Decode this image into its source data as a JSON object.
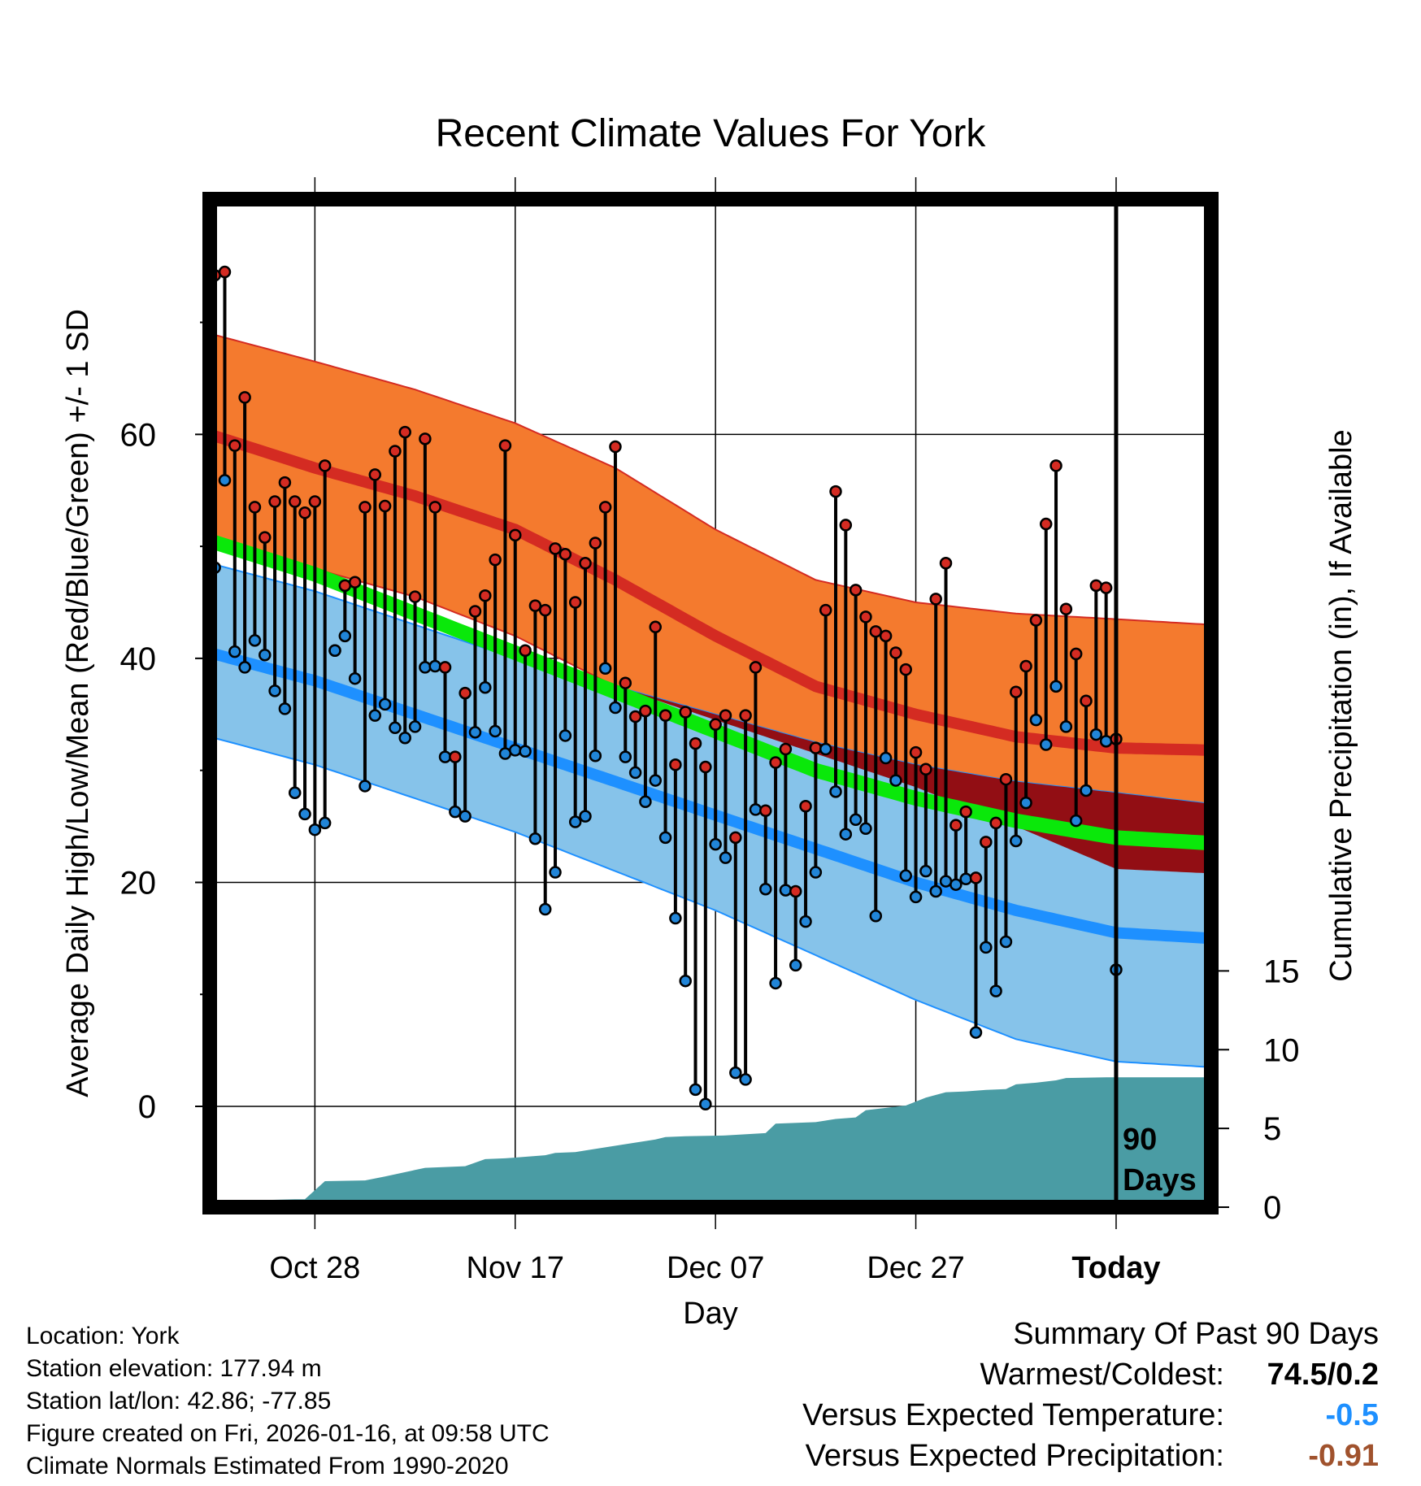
{
  "chart_data": {
    "type": "line",
    "title": "Recent Climate Values For York",
    "xlabel": "Day",
    "ylabel": "Average Daily High/Low/Mean (Red/Blue/Green) +/- 1 SD",
    "y2label": "Cumulative Precipitation (in), If Available",
    "xlim": [
      -10.5,
      89.5
    ],
    "ylim": [
      -9,
      81
    ],
    "y2lim": [
      0,
      64
    ],
    "yticks": [
      0,
      20,
      40,
      60
    ],
    "y2ticks": [
      0,
      5,
      10,
      15
    ],
    "xticks": [
      {
        "day": 0,
        "label": "Oct 28"
      },
      {
        "day": 20,
        "label": "Nov 17"
      },
      {
        "day": 40,
        "label": "Dec 07"
      },
      {
        "day": 60,
        "label": "Dec 27"
      },
      {
        "day": 80,
        "label": "Today"
      }
    ],
    "window_annotation": [
      "90",
      "Days"
    ],
    "normal_days": [
      -10.5,
      0,
      10,
      20,
      30,
      40,
      50,
      60,
      70,
      80,
      89.5
    ],
    "normals": {
      "high_upper": [
        69,
        66.5,
        64,
        61,
        57,
        51.5,
        47,
        45,
        44,
        43.5,
        43
      ],
      "high_mean": [
        60,
        57,
        54.5,
        51.5,
        47,
        42,
        37.5,
        35,
        33,
        32,
        31.8
      ],
      "high_lower": [
        51,
        48,
        45.5,
        42,
        37.5,
        34.5,
        31.5,
        28.5,
        25,
        21.2,
        20.8
      ],
      "mean": [
        50.5,
        47.5,
        44,
        40.5,
        37,
        33.5,
        30,
        27.5,
        25.5,
        24,
        23.5
      ],
      "low_upper": [
        48.5,
        46,
        43,
        40,
        37.5,
        35,
        32.5,
        30.5,
        29,
        28,
        27
      ],
      "low_mean": [
        40.5,
        38,
        35,
        32,
        29,
        26,
        23,
        20,
        17.5,
        15.5,
        15
      ],
      "low_lower": [
        33,
        30.5,
        27.5,
        24.5,
        21,
        17.5,
        13.5,
        9.5,
        6,
        4,
        3.5
      ]
    },
    "highs": [
      74.2,
      74.5,
      59,
      63.3,
      53.5,
      50.8,
      54,
      55.7,
      54,
      53,
      54,
      57.2,
      40.7,
      46.5,
      46.8,
      53.5,
      56.4,
      53.6,
      58.5,
      60.2,
      45.5,
      59.6,
      53.5,
      39.2,
      31.2,
      36.9,
      44.2,
      45.6,
      48.8,
      59,
      51,
      40.7,
      44.7,
      44.3,
      49.8,
      49.3,
      45,
      48.5,
      50.3,
      53.5,
      58.9,
      37.8,
      34.8,
      35.3,
      42.8,
      34.9,
      30.5,
      35.2,
      32.4,
      30.3,
      34.1,
      34.9,
      24,
      34.9,
      39.2,
      26.4,
      30.7,
      31.9,
      19.2,
      26.8,
      32,
      44.3,
      54.9,
      51.9,
      46.1,
      43.7,
      42.4,
      42,
      40.5,
      39,
      31.6,
      30.1,
      45.3,
      48.5,
      25.1,
      26.3,
      20.4,
      23.6,
      25.3,
      29.2,
      37,
      39.3,
      43.4,
      52,
      57.2,
      44.4,
      40.4,
      36.2,
      46.5,
      46.3,
      32.8
    ],
    "lows": [
      48.1,
      55.9,
      40.6,
      39.2,
      41.6,
      40.3,
      37.1,
      35.5,
      28,
      26.1,
      24.7,
      25.3,
      40.7,
      42,
      38.2,
      28.6,
      34.9,
      35.9,
      33.8,
      32.9,
      33.9,
      39.2,
      39.3,
      31.2,
      26.3,
      25.9,
      33.4,
      37.4,
      33.5,
      31.5,
      31.8,
      31.7,
      23.9,
      17.6,
      20.9,
      33.1,
      25.4,
      25.9,
      31.3,
      39.1,
      35.6,
      31.2,
      29.8,
      27.2,
      29.1,
      24,
      16.8,
      11.2,
      1.5,
      0.2,
      23.4,
      22.2,
      3,
      2.4,
      26.5,
      19.4,
      11,
      19.3,
      12.6,
      16.5,
      20.9,
      31.9,
      28.1,
      24.3,
      25.6,
      24.8,
      17,
      31.1,
      29.1,
      20.6,
      18.7,
      21,
      19.2,
      20.1,
      19.8,
      20.3,
      6.6,
      14.2,
      10.3,
      14.7,
      23.7,
      27.1,
      34.5,
      32.3,
      37.5,
      33.9,
      25.5,
      28.2,
      33.2,
      32.6,
      12.2
    ],
    "precip_days": [
      -10.5,
      -9,
      -7.5,
      -5,
      -2,
      -1,
      1,
      5,
      7,
      11,
      15,
      17,
      19,
      20,
      23,
      24,
      26,
      27,
      29,
      31,
      34,
      35,
      37,
      41,
      45,
      46,
      50,
      52,
      54,
      55,
      57,
      59,
      61,
      63,
      65,
      67,
      69,
      70,
      72,
      74,
      75,
      79,
      80,
      89.5
    ],
    "precip_cum": [
      0,
      0.25,
      0.3,
      0.45,
      0.5,
      0.5,
      1.65,
      1.7,
      1.95,
      2.5,
      2.6,
      3.05,
      3.1,
      3.15,
      3.3,
      3.45,
      3.5,
      3.6,
      3.8,
      4,
      4.3,
      4.45,
      4.5,
      4.55,
      4.7,
      5.3,
      5.4,
      5.6,
      5.7,
      6.15,
      6.3,
      6.45,
      6.95,
      7.3,
      7.35,
      7.45,
      7.5,
      7.8,
      7.9,
      8.05,
      8.2,
      8.25,
      8.25,
      8.25
    ],
    "colors": {
      "high_band": "#F47A2E",
      "high_line": "#D42B22",
      "mean_line": "#0AE80A",
      "low_band": "#86C3EA",
      "low_line": "#1E90FF",
      "overlap_band": "#920E14",
      "precip": "#4A9CA4",
      "high_dot": "#D42B22",
      "low_dot": "#2185D8"
    }
  },
  "info": {
    "location": "Location: York",
    "elevation": "Station elevation: 177.94 m",
    "latlon": "Station lat/lon: 42.86; -77.85",
    "created": "Figure created on Fri, 2026-01-16, at 09:58 UTC",
    "normals": "Climate Normals Estimated From 1990-2020"
  },
  "summary": {
    "heading": "Summary Of Past 90 Days",
    "warm_cold_label": "Warmest/Coldest:",
    "warm_cold_value": "74.5/0.2",
    "temp_label": "Versus Expected Temperature:",
    "temp_value": "-0.5",
    "temp_color": "#1E90FF",
    "precip_label": "Versus Expected Precipitation:",
    "precip_value": "-0.91",
    "precip_color": "#A0522D"
  }
}
